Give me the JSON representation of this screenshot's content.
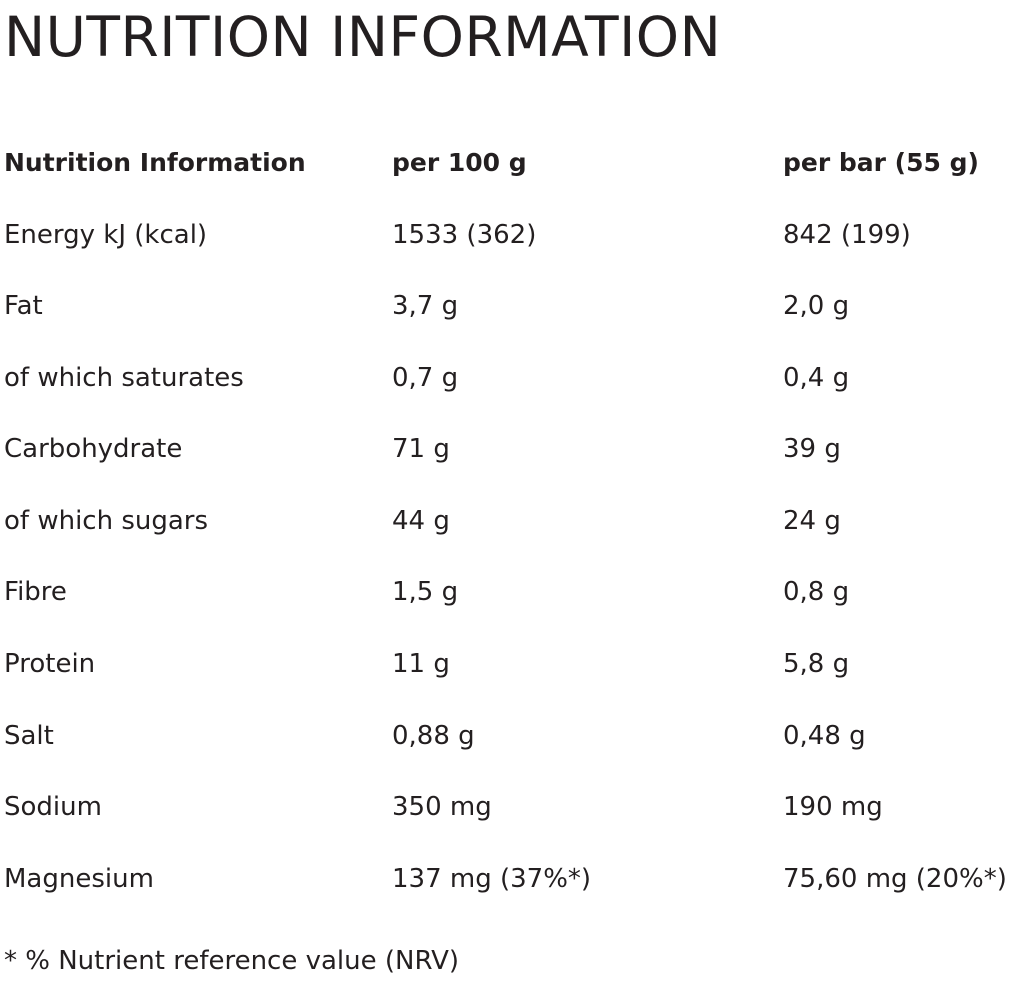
{
  "title": "NUTRITION INFORMATION",
  "table": {
    "headers": [
      "Nutrition Information",
      "per 100 g",
      "per bar (55 g)"
    ],
    "rows": [
      [
        "Energy kJ (kcal)",
        "1533 (362)",
        "842 (199)"
      ],
      [
        "Fat",
        "3,7 g",
        "2,0 g"
      ],
      [
        "of which saturates",
        "0,7 g",
        "0,4 g"
      ],
      [
        "Carbohydrate",
        "71 g",
        "39 g"
      ],
      [
        "of which sugars",
        "44 g",
        "24 g"
      ],
      [
        "Fibre",
        "1,5 g",
        "0,8 g"
      ],
      [
        "Protein",
        "11 g",
        "5,8 g"
      ],
      [
        "Salt",
        "0,88 g",
        "0,48 g"
      ],
      [
        "Sodium",
        "350 mg",
        "190 mg"
      ],
      [
        "Magnesium",
        "137 mg (37%*)",
        "75,60 mg (20%*)"
      ]
    ]
  },
  "footnote": "* % Nutrient reference value (NRV)"
}
